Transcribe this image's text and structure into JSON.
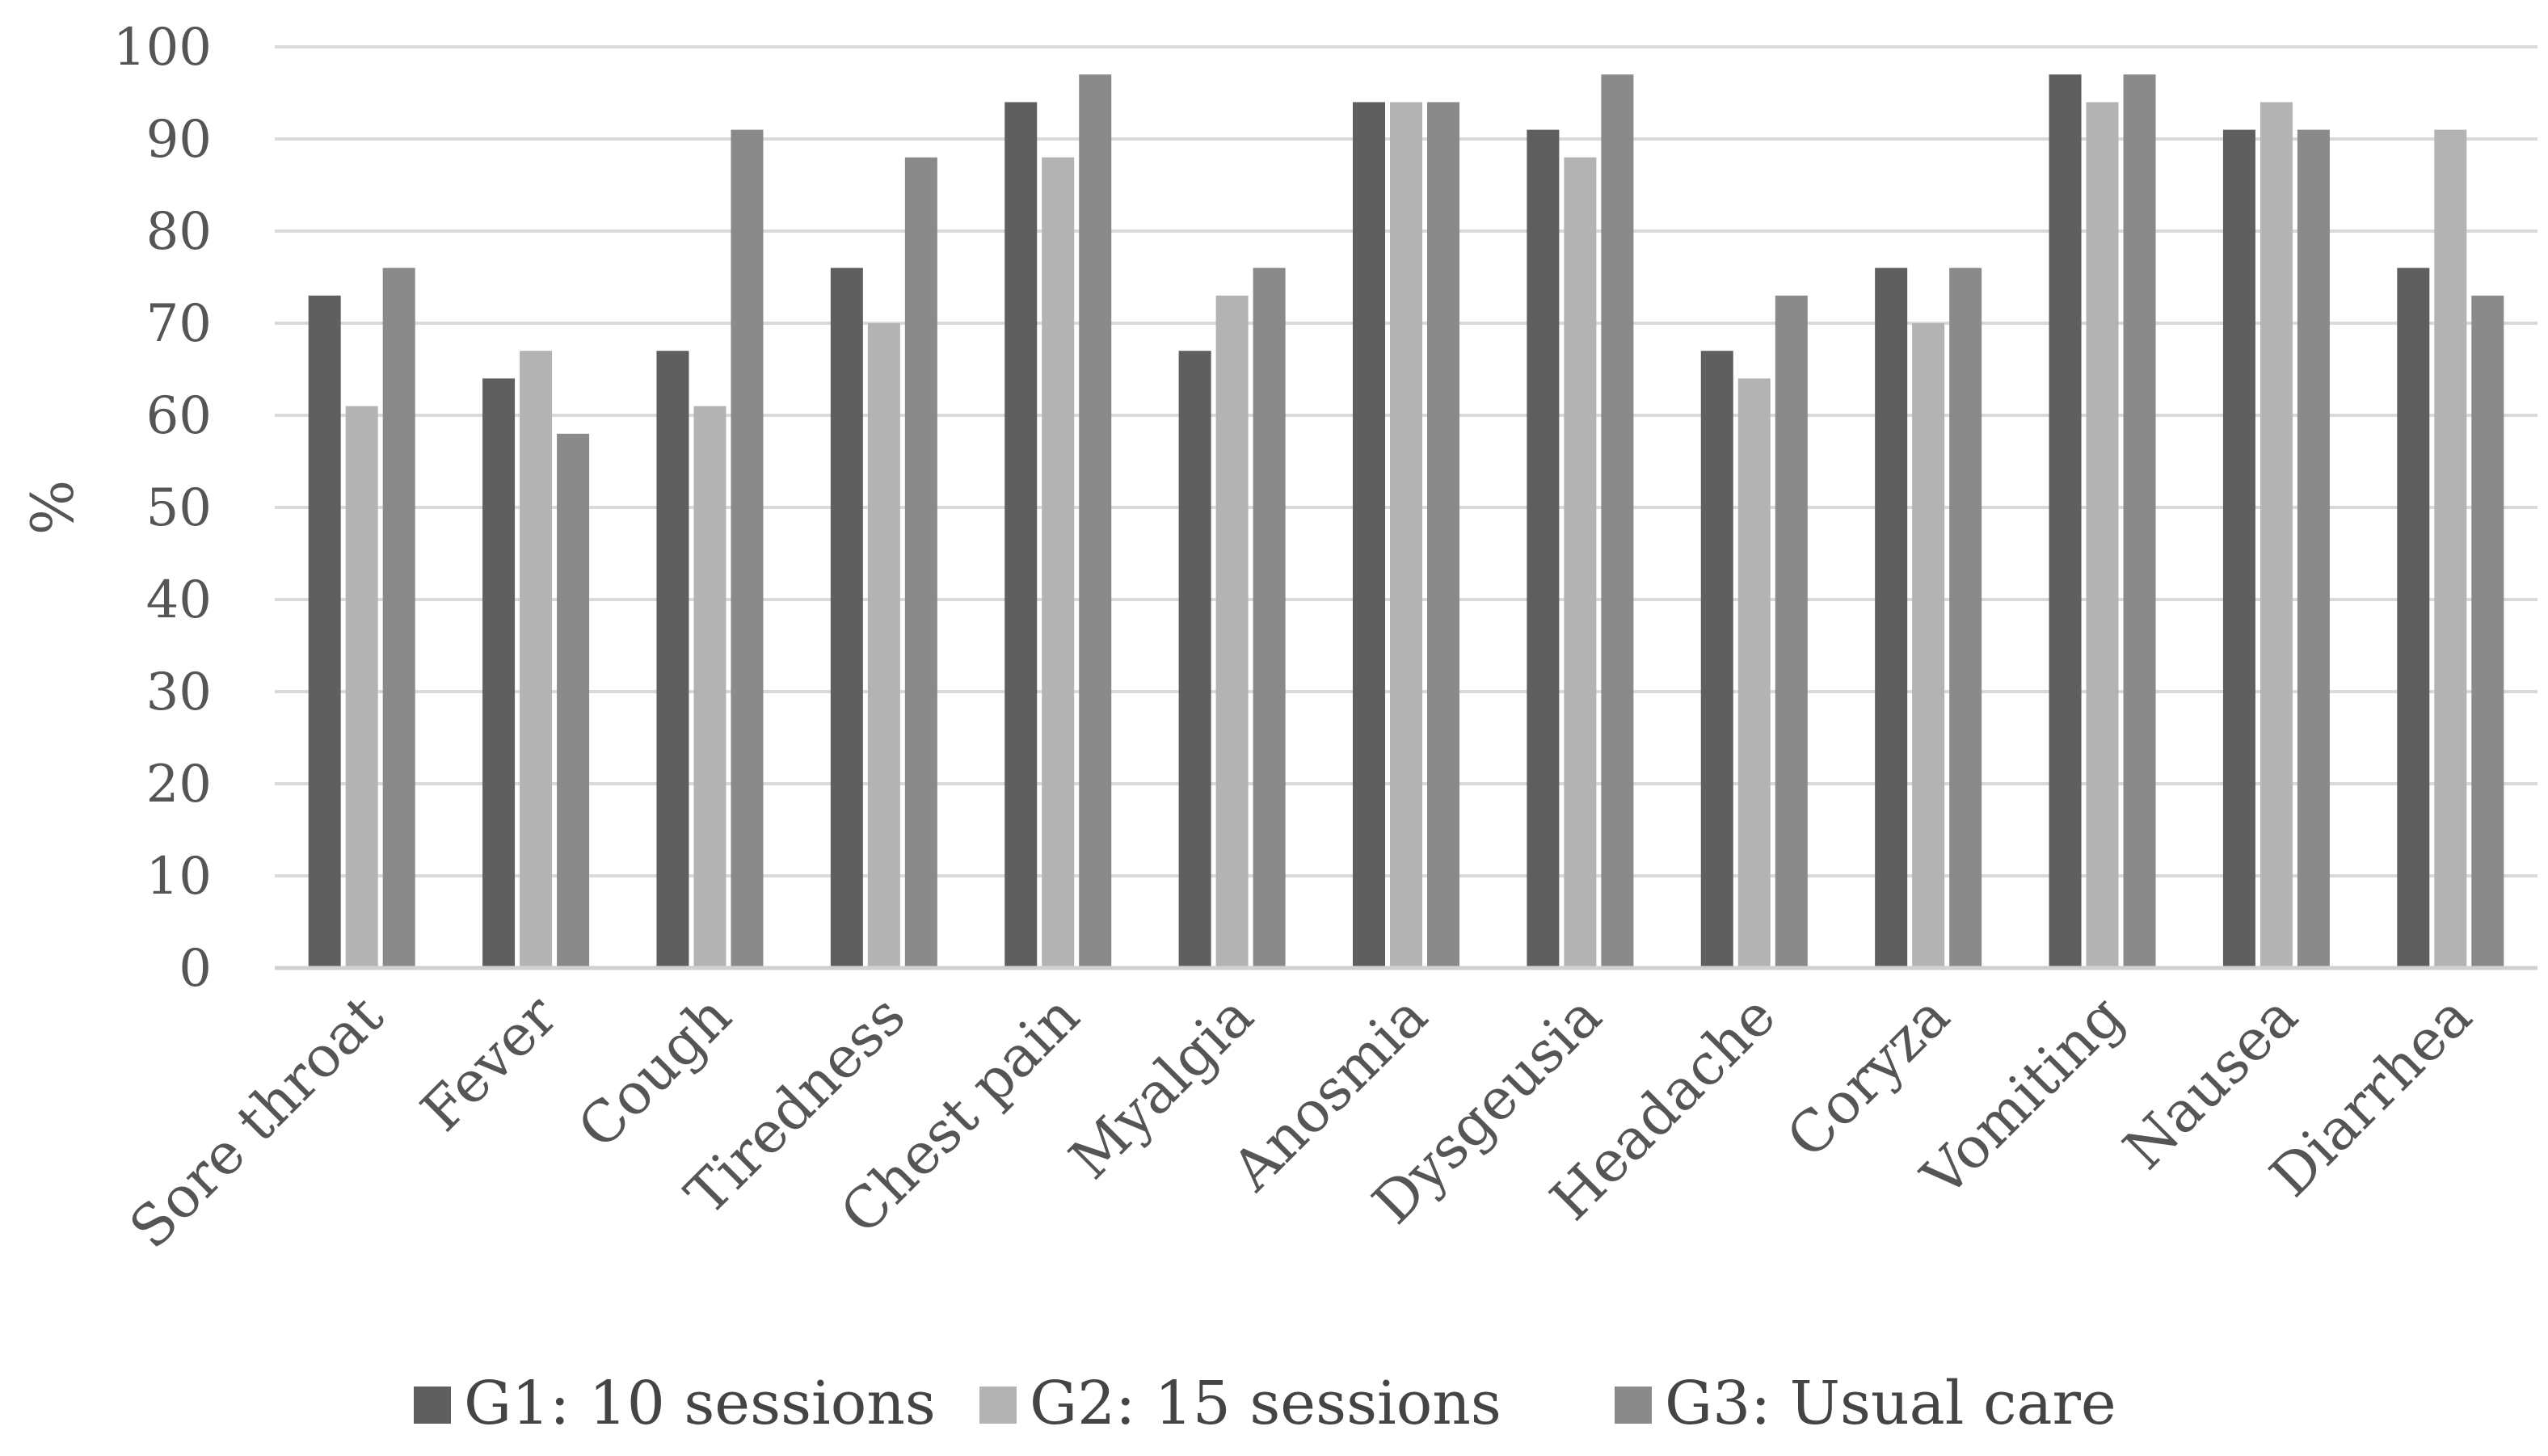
{
  "chart_data": {
    "type": "bar",
    "title": "",
    "xlabel": "",
    "ylabel": "%",
    "ylim": [
      0,
      100
    ],
    "yticks": [
      0,
      10,
      20,
      30,
      40,
      50,
      60,
      70,
      80,
      90,
      100
    ],
    "grid": true,
    "legend_position": "bottom",
    "categories": [
      "Sore throat",
      "Fever",
      "Cough",
      "Tiredness",
      "Chest pain",
      "Myalgia",
      "Anosmia",
      "Dysgeusia",
      "Headache",
      "Coryza",
      "Vomiting",
      "Nausea",
      "Diarrhea"
    ],
    "series": [
      {
        "name": "G1: 10 sessions",
        "color": "#5f5f5f",
        "values": [
          73,
          64,
          67,
          76,
          94,
          67,
          94,
          91,
          67,
          76,
          97,
          91,
          76
        ]
      },
      {
        "name": "G2: 15 sessions",
        "color": "#b3b3b3",
        "values": [
          61,
          67,
          61,
          70,
          88,
          73,
          94,
          88,
          64,
          70,
          94,
          94,
          91
        ]
      },
      {
        "name": "G3: Usual care",
        "color": "#8a8a8a",
        "values": [
          76,
          58,
          91,
          88,
          97,
          76,
          94,
          97,
          73,
          76,
          97,
          91,
          73
        ]
      }
    ]
  }
}
